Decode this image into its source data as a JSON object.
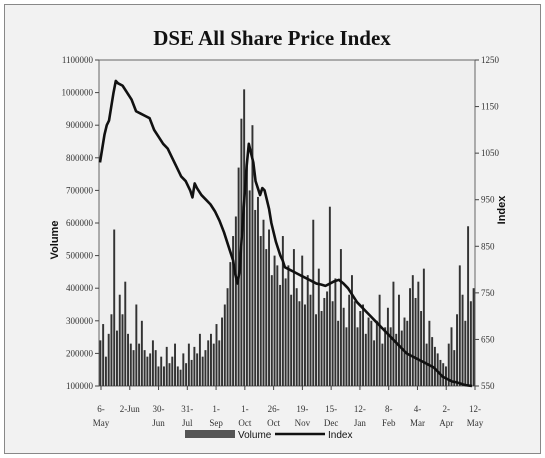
{
  "chart_data": {
    "type": "bar+line",
    "title": "DSE All Share Price Index",
    "ylabel_left": "Volume",
    "ylabel_right": "Index",
    "y_left_ticks": [
      "100000",
      "200000",
      "300000",
      "400000",
      "500000",
      "600000",
      "700000",
      "800000",
      "900000",
      "1000000",
      "1100000"
    ],
    "y_right_ticks": [
      "550",
      "650",
      "750",
      "850",
      "950",
      "1050",
      "1150",
      "1250"
    ],
    "y_left_range": [
      100000,
      1100000
    ],
    "y_right_range": [
      550,
      1250
    ],
    "x_tick_labels": [
      {
        "top": "6-",
        "bottom": "May"
      },
      {
        "top": "2-Jun",
        "bottom": ""
      },
      {
        "top": "30-",
        "bottom": "Jun"
      },
      {
        "top": "31-",
        "bottom": "Jul"
      },
      {
        "top": "1-",
        "bottom": "Sep"
      },
      {
        "top": "1-",
        "bottom": "Oct"
      },
      {
        "top": "26-",
        "bottom": "Oct"
      },
      {
        "top": "19-",
        "bottom": "Nov"
      },
      {
        "top": "15-",
        "bottom": "Dec"
      },
      {
        "top": "12-",
        "bottom": "Jan"
      },
      {
        "top": "8-",
        "bottom": "Feb"
      },
      {
        "top": "4-",
        "bottom": "Mar"
      },
      {
        "top": "2-",
        "bottom": "Apr"
      },
      {
        "top": "12-",
        "bottom": "May"
      }
    ],
    "grid": false,
    "legend_position": "bottom",
    "series": [
      {
        "name": "Volume",
        "type": "bar",
        "color": "#333333",
        "values": [
          240000,
          290000,
          190000,
          260000,
          320000,
          580000,
          270000,
          380000,
          320000,
          420000,
          260000,
          230000,
          210000,
          350000,
          230000,
          300000,
          210000,
          190000,
          200000,
          240000,
          210000,
          160000,
          190000,
          160000,
          220000,
          170000,
          190000,
          230000,
          160000,
          150000,
          200000,
          170000,
          230000,
          180000,
          220000,
          200000,
          260000,
          190000,
          210000,
          240000,
          260000,
          230000,
          290000,
          240000,
          310000,
          350000,
          400000,
          480000,
          560000,
          620000,
          770000,
          920000,
          1010000,
          780000,
          700000,
          900000,
          640000,
          680000,
          560000,
          610000,
          520000,
          580000,
          440000,
          500000,
          470000,
          410000,
          560000,
          430000,
          470000,
          380000,
          520000,
          400000,
          360000,
          500000,
          350000,
          440000,
          380000,
          610000,
          320000,
          460000,
          330000,
          370000,
          390000,
          650000,
          360000,
          430000,
          300000,
          520000,
          340000,
          280000,
          380000,
          440000,
          360000,
          280000,
          330000,
          350000,
          260000,
          310000,
          300000,
          240000,
          300000,
          380000,
          230000,
          280000,
          340000,
          280000,
          420000,
          260000,
          380000,
          270000,
          310000,
          300000,
          400000,
          440000,
          370000,
          420000,
          330000,
          460000,
          230000,
          300000,
          250000,
          220000,
          200000,
          180000,
          170000,
          160000,
          230000,
          280000,
          210000,
          320000,
          470000,
          380000,
          300000,
          590000,
          360000,
          400000
        ]
      },
      {
        "name": "Index",
        "type": "line",
        "color": "#111111",
        "points": [
          [
            0,
            1030
          ],
          [
            1,
            1060
          ],
          [
            2,
            1090
          ],
          [
            3,
            1110
          ],
          [
            4,
            1120
          ],
          [
            5,
            1150
          ],
          [
            6,
            1180
          ],
          [
            7,
            1205
          ],
          [
            8,
            1200
          ],
          [
            10,
            1195
          ],
          [
            12,
            1180
          ],
          [
            14,
            1165
          ],
          [
            16,
            1140
          ],
          [
            18,
            1135
          ],
          [
            20,
            1130
          ],
          [
            22,
            1125
          ],
          [
            24,
            1100
          ],
          [
            26,
            1085
          ],
          [
            28,
            1070
          ],
          [
            30,
            1060
          ],
          [
            32,
            1040
          ],
          [
            34,
            1020
          ],
          [
            36,
            1000
          ],
          [
            38,
            990
          ],
          [
            40,
            970
          ],
          [
            41,
            955
          ],
          [
            42,
            985
          ],
          [
            43,
            975
          ],
          [
            45,
            960
          ],
          [
            47,
            950
          ],
          [
            49,
            940
          ],
          [
            51,
            925
          ],
          [
            53,
            905
          ],
          [
            55,
            880
          ],
          [
            57,
            850
          ],
          [
            59,
            820
          ],
          [
            60,
            790
          ],
          [
            61,
            770
          ],
          [
            62,
            800
          ],
          [
            63,
            880
          ],
          [
            64,
            950
          ],
          [
            65,
            1020
          ],
          [
            66,
            1070
          ],
          [
            67,
            1050
          ],
          [
            68,
            1030
          ],
          [
            69,
            990
          ],
          [
            70,
            975
          ],
          [
            71,
            960
          ],
          [
            72,
            975
          ],
          [
            73,
            970
          ],
          [
            74,
            950
          ],
          [
            75,
            930
          ],
          [
            76,
            900
          ],
          [
            77,
            880
          ],
          [
            78,
            860
          ],
          [
            79,
            845
          ],
          [
            80,
            830
          ],
          [
            81,
            820
          ],
          [
            82,
            805
          ],
          [
            84,
            800
          ],
          [
            86,
            795
          ],
          [
            88,
            790
          ],
          [
            90,
            785
          ],
          [
            92,
            780
          ],
          [
            94,
            775
          ],
          [
            96,
            770
          ],
          [
            98,
            768
          ],
          [
            100,
            765
          ],
          [
            102,
            770
          ],
          [
            104,
            775
          ],
          [
            106,
            778
          ],
          [
            108,
            770
          ],
          [
            110,
            760
          ],
          [
            112,
            745
          ],
          [
            114,
            730
          ],
          [
            116,
            720
          ],
          [
            118,
            710
          ],
          [
            120,
            700
          ],
          [
            122,
            690
          ],
          [
            124,
            680
          ],
          [
            126,
            670
          ],
          [
            128,
            660
          ],
          [
            130,
            650
          ],
          [
            132,
            640
          ],
          [
            134,
            630
          ],
          [
            136,
            620
          ],
          [
            138,
            615
          ],
          [
            140,
            610
          ],
          [
            142,
            605
          ],
          [
            144,
            600
          ],
          [
            146,
            595
          ],
          [
            148,
            590
          ],
          [
            150,
            580
          ],
          [
            152,
            570
          ],
          [
            154,
            565
          ],
          [
            156,
            560
          ],
          [
            158,
            558
          ],
          [
            160,
            555
          ],
          [
            162,
            552
          ],
          [
            165,
            550
          ]
        ]
      }
    ]
  }
}
